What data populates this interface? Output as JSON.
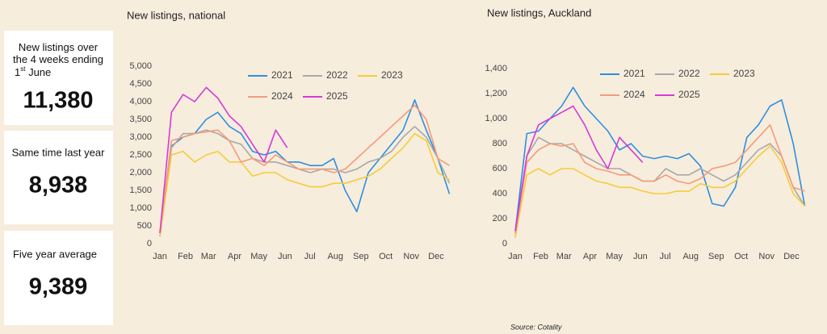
{
  "cards": [
    {
      "label": "New listings over the 4 weeks ending 1",
      "label_sup": "st",
      "label_end": "June",
      "value": "11,380"
    },
    {
      "label": "Same time last year",
      "value": "8,938"
    },
    {
      "label": "Five year average",
      "value": "9,389"
    }
  ],
  "source": "Source: Cotality",
  "chart_data": [
    {
      "type": "line",
      "title": "New listings, national",
      "x": [
        0,
        2,
        4,
        6,
        8,
        10,
        12,
        14,
        16,
        18,
        20,
        22,
        24,
        26,
        28,
        30,
        32,
        34,
        36,
        38,
        40,
        42,
        44,
        46,
        48,
        50
      ],
      "xlim": [
        0,
        51
      ],
      "xticks": [
        {
          "value": 0,
          "label": "Jan"
        },
        {
          "value": 4.4,
          "label": "Feb"
        },
        {
          "value": 8.4,
          "label": "Mar"
        },
        {
          "value": 12.9,
          "label": "Apr"
        },
        {
          "value": 17.1,
          "label": "May"
        },
        {
          "value": 21.6,
          "label": "Jun"
        },
        {
          "value": 25.9,
          "label": "Jul"
        },
        {
          "value": 30.3,
          "label": "Aug"
        },
        {
          "value": 34.7,
          "label": "Sep"
        },
        {
          "value": 39,
          "label": "Oct"
        },
        {
          "value": 43.4,
          "label": "Nov"
        },
        {
          "value": 47.7,
          "label": "Dec"
        }
      ],
      "ylim": [
        0,
        5000
      ],
      "yticks": [
        0,
        500,
        {
          "value": 1000,
          "label": "1,000"
        },
        {
          "value": 1500,
          "label": "1,500"
        },
        {
          "value": 2000,
          "label": "2,000"
        },
        {
          "value": 2500,
          "label": "2,500"
        },
        {
          "value": 3000,
          "label": "3,000"
        },
        {
          "value": 3500,
          "label": "3,500"
        },
        {
          "value": 4000,
          "label": "4,000"
        },
        {
          "value": 4500,
          "label": "4,500"
        },
        {
          "value": 5000,
          "label": "5,000"
        }
      ],
      "legend_position": "top",
      "series": [
        {
          "name": "2021",
          "color": "#2e8fe0",
          "values": [
            300,
            2750,
            3000,
            3100,
            3500,
            3700,
            3300,
            3100,
            2600,
            2500,
            2600,
            2300,
            2300,
            2200,
            2200,
            2400,
            1500,
            900,
            2000,
            2400,
            2800,
            3200,
            4050,
            3200,
            2400,
            1400
          ]
        },
        {
          "name": "2022",
          "color": "#a8a8a8",
          "values": [
            200,
            2700,
            3100,
            3100,
            3200,
            3100,
            2900,
            2800,
            2400,
            2300,
            2300,
            2200,
            2100,
            2000,
            2100,
            2100,
            2000,
            2100,
            2300,
            2400,
            2600,
            3000,
            3300,
            3000,
            2400,
            1700
          ]
        },
        {
          "name": "2023",
          "color": "#f5cc3a",
          "values": [
            200,
            2500,
            2600,
            2300,
            2500,
            2600,
            2300,
            2300,
            1900,
            2000,
            2000,
            1800,
            1700,
            1600,
            1600,
            1700,
            1700,
            1800,
            1900,
            2100,
            2400,
            2700,
            3100,
            2900,
            2000,
            1800
          ]
        },
        {
          "name": "2024",
          "color": "#f59a7a",
          "values": [
            300,
            2900,
            3000,
            3100,
            3150,
            3200,
            2900,
            2300,
            2400,
            2200,
            2500,
            2300,
            2100,
            2100,
            2100,
            2000,
            2100,
            2400,
            2700,
            3000,
            3300,
            3600,
            3900,
            3500,
            2400,
            2200
          ]
        },
        {
          "name": "2025",
          "color": "#d63ad6",
          "values": [
            300,
            3700,
            4200,
            4000,
            4400,
            4100,
            3600,
            3300,
            2800,
            2300,
            3200,
            2700,
            null,
            null,
            null,
            null,
            null,
            null,
            null,
            null,
            null,
            null,
            null,
            null,
            null,
            null
          ]
        }
      ]
    },
    {
      "type": "line",
      "title": "New listings, Auckland",
      "x": [
        0,
        2,
        4,
        6,
        8,
        10,
        12,
        14,
        16,
        18,
        20,
        22,
        24,
        26,
        28,
        30,
        32,
        34,
        36,
        38,
        40,
        42,
        44,
        46,
        48,
        50
      ],
      "xlim": [
        0,
        51
      ],
      "xticks": [
        {
          "value": 0,
          "label": "Jan"
        },
        {
          "value": 4.4,
          "label": "Feb"
        },
        {
          "value": 8.4,
          "label": "Mar"
        },
        {
          "value": 12.9,
          "label": "Apr"
        },
        {
          "value": 17.1,
          "label": "May"
        },
        {
          "value": 21.6,
          "label": "Jun"
        },
        {
          "value": 25.9,
          "label": "Jul"
        },
        {
          "value": 30.3,
          "label": "Aug"
        },
        {
          "value": 34.7,
          "label": "Sep"
        },
        {
          "value": 39,
          "label": "Oct"
        },
        {
          "value": 43.4,
          "label": "Nov"
        },
        {
          "value": 47.7,
          "label": "Dec"
        }
      ],
      "ylim": [
        0,
        1400
      ],
      "yticks": [
        0,
        200,
        400,
        600,
        800,
        {
          "value": 1000,
          "label": "1,000"
        },
        {
          "value": 1200,
          "label": "1,200"
        },
        {
          "value": 1400,
          "label": "1,400"
        }
      ],
      "legend_position": "top",
      "series": [
        {
          "name": "2021",
          "color": "#2e8fe0",
          "values": [
            100,
            880,
            900,
            1000,
            1100,
            1250,
            1100,
            1000,
            900,
            750,
            800,
            700,
            680,
            700,
            680,
            720,
            620,
            320,
            300,
            450,
            850,
            950,
            1100,
            1150,
            800,
            300
          ]
        },
        {
          "name": "2022",
          "color": "#a8a8a8",
          "values": [
            50,
            700,
            850,
            800,
            800,
            750,
            700,
            650,
            600,
            600,
            550,
            500,
            500,
            600,
            550,
            550,
            600,
            550,
            500,
            550,
            650,
            750,
            800,
            700,
            450,
            300
          ]
        },
        {
          "name": "2023",
          "color": "#f5cc3a",
          "values": [
            50,
            550,
            600,
            550,
            600,
            600,
            550,
            500,
            480,
            450,
            450,
            420,
            400,
            400,
            420,
            420,
            480,
            450,
            450,
            500,
            600,
            700,
            780,
            650,
            400,
            300
          ]
        },
        {
          "name": "2024",
          "color": "#f59a7a",
          "values": [
            80,
            650,
            750,
            800,
            780,
            800,
            650,
            600,
            580,
            550,
            550,
            500,
            500,
            550,
            500,
            480,
            520,
            600,
            620,
            650,
            750,
            850,
            950,
            700,
            450,
            420
          ]
        },
        {
          "name": "2025",
          "color": "#d63ad6",
          "values": [
            100,
            700,
            950,
            1000,
            1050,
            1100,
            950,
            750,
            600,
            850,
            750,
            650,
            null,
            null,
            null,
            null,
            null,
            null,
            null,
            null,
            null,
            null,
            null,
            null,
            null,
            null
          ]
        }
      ]
    }
  ]
}
